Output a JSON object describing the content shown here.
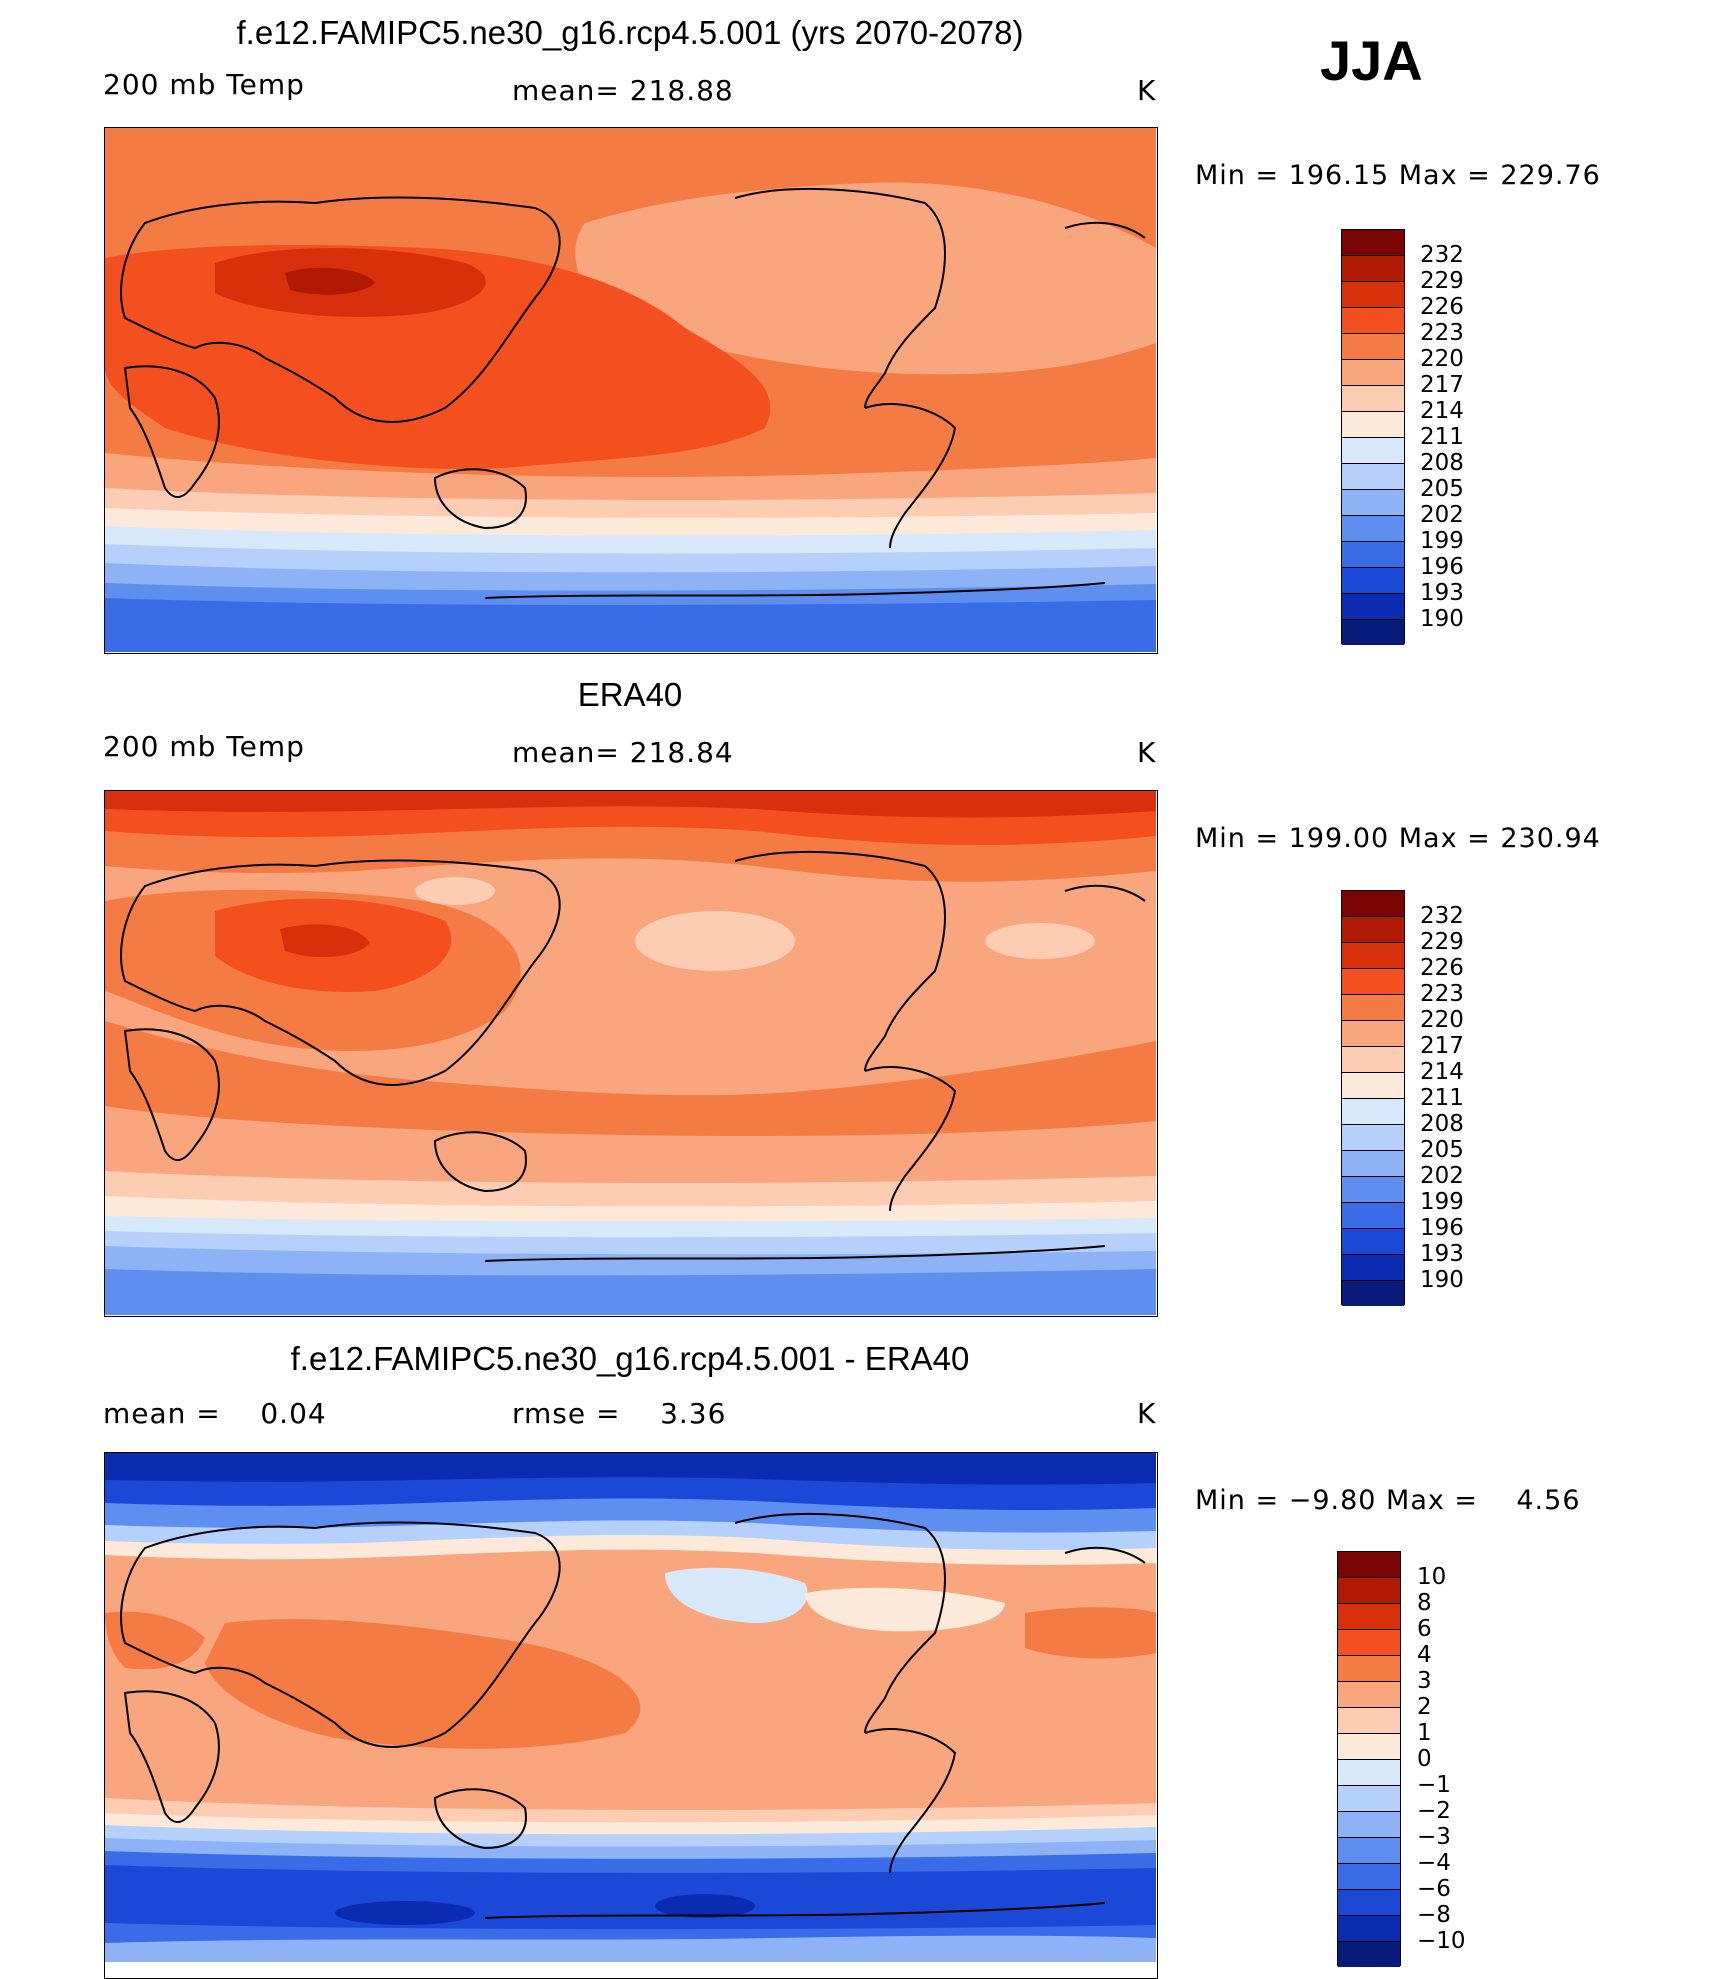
{
  "season": "JJA",
  "panels": [
    {
      "title": "f.e12.FAMIPC5.ne30_g16.rcp4.5.001 (yrs 2070-2078)",
      "left": "200 mb Temp",
      "center": "mean= 218.88",
      "right": "K",
      "minmax": "Min = 196.15 Max = 229.76",
      "colorbar_labels": [
        "232",
        "229",
        "226",
        "223",
        "220",
        "217",
        "214",
        "211",
        "208",
        "205",
        "202",
        "199",
        "196",
        "193",
        "190"
      ]
    },
    {
      "title": "ERA40",
      "left": "200 mb Temp",
      "center": "mean= 218.84",
      "right": "K",
      "minmax": "Min = 199.00 Max = 230.94",
      "colorbar_labels": [
        "232",
        "229",
        "226",
        "223",
        "220",
        "217",
        "214",
        "211",
        "208",
        "205",
        "202",
        "199",
        "196",
        "193",
        "190"
      ]
    },
    {
      "title": "f.e12.FAMIPC5.ne30_g16.rcp4.5.001 - ERA40",
      "left": "mean =    0.04",
      "center": "rmse =    3.36",
      "right": "K",
      "minmax": "Min = −9.80 Max =    4.56",
      "colorbar_labels": [
        "10",
        "8",
        "6",
        "4",
        "3",
        "2",
        "1",
        "0",
        "−1",
        "−2",
        "−3",
        "−4",
        "−6",
        "−8",
        "−10"
      ]
    }
  ],
  "colors": {
    "scale": [
      "#7a0403",
      "#b01a05",
      "#d7300b",
      "#f4501f",
      "#f57b45",
      "#f9a57d",
      "#fdcdb3",
      "#fde9da",
      "#d8e8fb",
      "#b5d0fa",
      "#8db3f6",
      "#5e8ff0",
      "#3a6ce8",
      "#1c48d8",
      "#0b2cb0",
      "#081a7a"
    ]
  },
  "chart_data": [
    {
      "type": "heatmap",
      "title": "f.e12.FAMIPC5.ne30_g16.rcp4.5.001 (yrs 2070-2078)",
      "variable": "200 mb Temp",
      "units": "K",
      "mean": 218.88,
      "min": 196.15,
      "max": 229.76,
      "levels": [
        190,
        193,
        196,
        199,
        202,
        205,
        208,
        211,
        214,
        217,
        220,
        223,
        226,
        229,
        232
      ],
      "rows_lat_north_to_south": [
        {
          "lat": 90,
          "value": 221
        },
        {
          "lat": 60,
          "value": 220
        },
        {
          "lat": 40,
          "value": 225
        },
        {
          "lat": 20,
          "value": 225
        },
        {
          "lat": 0,
          "value": 224
        },
        {
          "lat": -20,
          "value": 222
        },
        {
          "lat": -40,
          "value": 214
        },
        {
          "lat": -50,
          "value": 206
        },
        {
          "lat": -65,
          "value": 199
        },
        {
          "lat": -90,
          "value": 197
        }
      ]
    },
    {
      "type": "heatmap",
      "title": "ERA40",
      "variable": "200 mb Temp",
      "units": "K",
      "mean": 218.84,
      "min": 199.0,
      "max": 230.94,
      "levels": [
        190,
        193,
        196,
        199,
        202,
        205,
        208,
        211,
        214,
        217,
        220,
        223,
        226,
        229,
        232
      ],
      "rows_lat_north_to_south": [
        {
          "lat": 90,
          "value": 229
        },
        {
          "lat": 70,
          "value": 226
        },
        {
          "lat": 50,
          "value": 221
        },
        {
          "lat": 30,
          "value": 220
        },
        {
          "lat": 0,
          "value": 222
        },
        {
          "lat": -20,
          "value": 221
        },
        {
          "lat": -40,
          "value": 214
        },
        {
          "lat": -55,
          "value": 208
        },
        {
          "lat": -75,
          "value": 202
        },
        {
          "lat": -90,
          "value": 200
        }
      ]
    },
    {
      "type": "heatmap",
      "title": "f.e12.FAMIPC5.ne30_g16.rcp4.5.001 - ERA40",
      "variable": "difference",
      "units": "K",
      "mean": 0.04,
      "rmse": 3.36,
      "min": -9.8,
      "max": 4.56,
      "levels": [
        -10,
        -8,
        -6,
        -4,
        -3,
        -2,
        -1,
        0,
        1,
        2,
        3,
        4,
        6,
        8,
        10
      ],
      "rows_lat_north_to_south": [
        {
          "lat": 90,
          "value": -8
        },
        {
          "lat": 70,
          "value": -6
        },
        {
          "lat": 50,
          "value": 1
        },
        {
          "lat": 30,
          "value": 3
        },
        {
          "lat": 0,
          "value": 3
        },
        {
          "lat": -20,
          "value": 3
        },
        {
          "lat": -40,
          "value": -3
        },
        {
          "lat": -55,
          "value": -6
        },
        {
          "lat": -75,
          "value": -5
        },
        {
          "lat": -90,
          "value": -3
        }
      ]
    }
  ]
}
